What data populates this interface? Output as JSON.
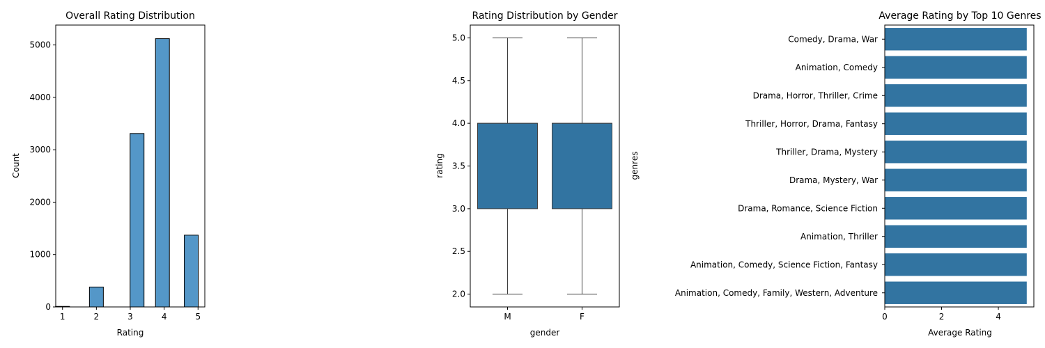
{
  "chart_data": [
    {
      "type": "bar",
      "title": "Overall Rating Distribution",
      "xlabel": "Rating",
      "ylabel": "Count",
      "bins": [
        {
          "x": 1.0,
          "count": 10
        },
        {
          "x": 2.0,
          "count": 380
        },
        {
          "x": 3.2,
          "count": 3310
        },
        {
          "x": 3.95,
          "count": 5120
        },
        {
          "x": 4.8,
          "count": 1370
        }
      ],
      "xticks": [
        1,
        2,
        3,
        4,
        5
      ],
      "yticks": [
        0,
        1000,
        2000,
        3000,
        4000,
        5000
      ],
      "xlim": [
        0.8,
        5.2
      ],
      "ylim": [
        0,
        5380
      ],
      "color": "#5497c8"
    },
    {
      "type": "box",
      "title": "Rating Distribution by Gender",
      "xlabel": "gender",
      "ylabel": "rating",
      "categories": [
        "M",
        "F"
      ],
      "boxes": [
        {
          "name": "M",
          "min": 2.0,
          "q1": 3.0,
          "median": 4.0,
          "q3": 4.0,
          "max": 5.0
        },
        {
          "name": "F",
          "min": 2.0,
          "q1": 3.0,
          "median": 4.0,
          "q3": 4.0,
          "max": 5.0
        }
      ],
      "yticks": [
        "2.0",
        "2.5",
        "3.0",
        "3.5",
        "4.0",
        "4.5",
        "5.0"
      ],
      "ylim": [
        1.85,
        5.15
      ],
      "color": "#3274a1"
    },
    {
      "type": "bar",
      "orientation": "horizontal",
      "title": "Average Rating by Top 10 Genres",
      "xlabel": "Average Rating",
      "ylabel": "genres",
      "categories": [
        "Comedy, Drama, War",
        "Animation, Comedy",
        "Drama, Horror, Thriller, Crime",
        "Thriller, Horror, Drama, Fantasy",
        "Thriller, Drama, Mystery",
        "Drama, Mystery, War",
        "Drama, Romance, Science Fiction",
        "Animation, Thriller",
        "Animation, Comedy, Science Fiction, Fantasy",
        "Animation, Comedy, Family, Western, Adventure"
      ],
      "values": [
        5,
        5,
        5,
        5,
        5,
        5,
        5,
        5,
        5,
        5
      ],
      "xticks": [
        0,
        2,
        4
      ],
      "xlim": [
        0,
        5.25
      ],
      "color": "#3274a1"
    }
  ]
}
